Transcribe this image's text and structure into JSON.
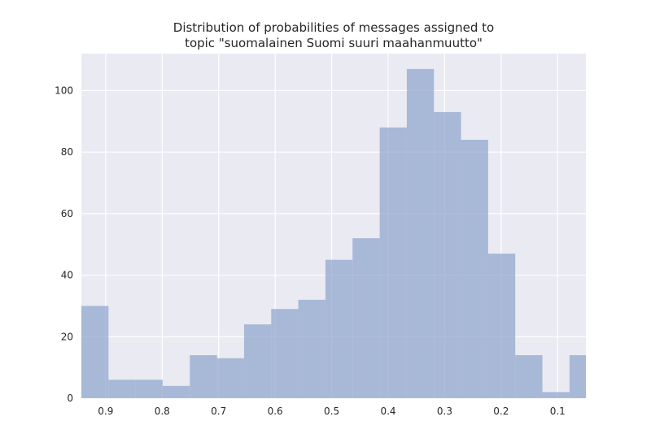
{
  "chart_data": {
    "type": "bar",
    "title_lines": [
      "Distribution of probabilities of messages assigned to",
      "topic \"suomalainen Suomi suuri maahanmuutto\""
    ],
    "xlabel": "",
    "ylabel": "",
    "x_reversed": true,
    "xlim": [
      0.943,
      0.05
    ],
    "ylim": [
      0,
      112
    ],
    "grid": true,
    "bin_edges": [
      0.943,
      0.895,
      0.847,
      0.799,
      0.751,
      0.703,
      0.655,
      0.607,
      0.559,
      0.511,
      0.463,
      0.415,
      0.367,
      0.319,
      0.271,
      0.223,
      0.175,
      0.127,
      0.079,
      0.031
    ],
    "values": [
      30,
      6,
      6,
      4,
      14,
      13,
      24,
      29,
      32,
      45,
      52,
      88,
      107,
      93,
      84,
      47,
      14,
      2,
      14
    ],
    "xticks": [
      0.9,
      0.8,
      0.7,
      0.6,
      0.5,
      0.4,
      0.3,
      0.2,
      0.1
    ],
    "xtick_labels": [
      "0.9",
      "0.8",
      "0.7",
      "0.6",
      "0.5",
      "0.4",
      "0.3",
      "0.2",
      "0.1"
    ],
    "yticks": [
      0,
      20,
      40,
      60,
      80,
      100
    ],
    "ytick_labels": [
      "0",
      "20",
      "40",
      "60",
      "80",
      "100"
    ],
    "bar_color": "#8fa5cc",
    "plot_background": "#eaeaf2",
    "grid_color": "#ffffff"
  }
}
